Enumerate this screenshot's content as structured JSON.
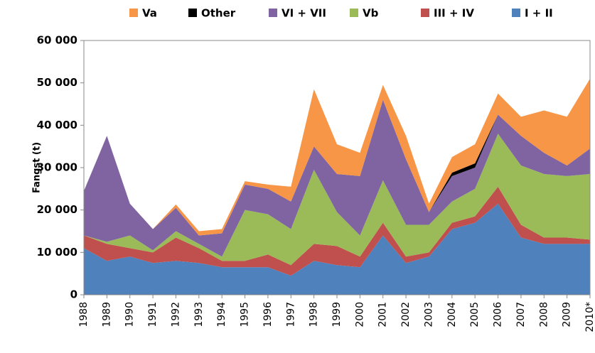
{
  "chart_data": {
    "type": "stacked_area",
    "y_label": "Fangst (t)",
    "categories": [
      "1988",
      "1989",
      "1990",
      "1991",
      "1992",
      "1993",
      "1994",
      "1995",
      "1996",
      "1997",
      "1998",
      "1999",
      "2000",
      "2001",
      "2002",
      "2003",
      "2004",
      "2005",
      "2006",
      "2007",
      "2008",
      "2009",
      "2010*"
    ],
    "series": [
      {
        "name": "I + II",
        "color": "#4f81bd",
        "values": [
          11000,
          8000,
          9000,
          7500,
          8000,
          7500,
          6500,
          6500,
          6500,
          4500,
          8000,
          7000,
          6500,
          14000,
          7500,
          9000,
          15500,
          17000,
          21500,
          13500,
          12000,
          12000,
          12000
        ]
      },
      {
        "name": "III + IV",
        "color": "#c0504d",
        "values": [
          3000,
          4000,
          2000,
          2500,
          5500,
          3500,
          1500,
          1500,
          3000,
          2500,
          4000,
          4500,
          2500,
          3000,
          1500,
          1000,
          1500,
          1500,
          4000,
          3000,
          1500,
          1500,
          1000
        ]
      },
      {
        "name": "Vb",
        "color": "#9bbb59",
        "values": [
          0,
          500,
          3000,
          500,
          1500,
          1000,
          1000,
          12000,
          9500,
          8500,
          17500,
          8000,
          5000,
          10000,
          7500,
          6500,
          5000,
          6500,
          12500,
          14000,
          15000,
          14500,
          15500
        ]
      },
      {
        "name": "VI + VII",
        "color": "#8064a2",
        "values": [
          10500,
          25000,
          7500,
          5000,
          5500,
          2000,
          5500,
          6000,
          6000,
          6500,
          5500,
          9000,
          14000,
          19000,
          15500,
          3000,
          6000,
          5000,
          4500,
          7000,
          5000,
          2500,
          6000
        ]
      },
      {
        "name": "Other",
        "color": "#000000",
        "values": [
          0,
          0,
          0,
          0,
          0,
          0,
          0,
          0,
          0,
          0,
          0,
          0,
          0,
          0,
          0,
          0,
          800,
          1000,
          0,
          0,
          0,
          0,
          0
        ]
      },
      {
        "name": "Va",
        "color": "#f79646",
        "values": [
          0,
          0,
          0,
          0,
          800,
          1000,
          1000,
          800,
          1000,
          3500,
          13500,
          7000,
          5500,
          3500,
          5500,
          2000,
          3700,
          4500,
          5000,
          4500,
          10000,
          11500,
          16500
        ]
      }
    ],
    "legend_order": [
      5,
      4,
      3,
      2,
      1,
      0
    ],
    "ylim": [
      0,
      60000
    ],
    "yticks": [
      0,
      {
        "value": 10000,
        "label": "10 000"
      },
      {
        "value": 20000,
        "label": "20 000"
      },
      {
        "value": 30000,
        "label": "30 000"
      },
      {
        "value": 40000,
        "label": "40 000"
      },
      {
        "value": 50000,
        "label": "50 000"
      },
      {
        "value": 60000,
        "label": "60 000"
      }
    ]
  }
}
